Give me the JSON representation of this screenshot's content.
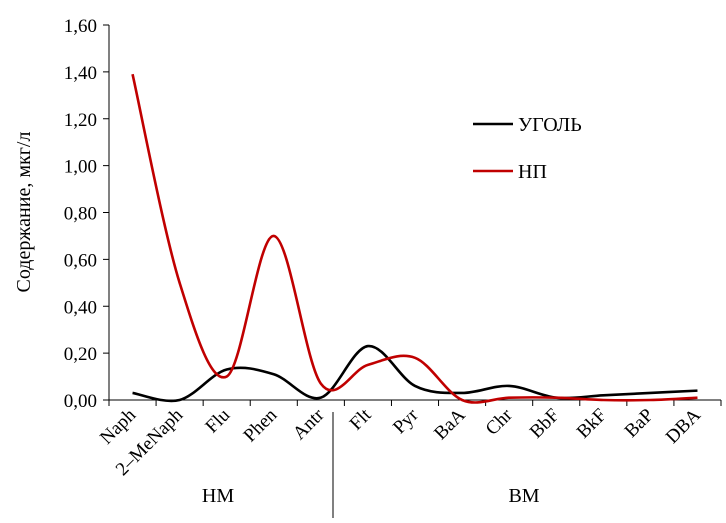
{
  "chart_data": {
    "type": "line",
    "title": "",
    "xlabel": "",
    "ylabel": "Содержание, мкг/л",
    "ylim": [
      0,
      1.6
    ],
    "yticks": [
      "0,00",
      "0,20",
      "0,40",
      "0,60",
      "0,80",
      "1,00",
      "1,20",
      "1,40",
      "1,60"
    ],
    "categories": [
      "Naph",
      "2–MeNaph",
      "Flu",
      "Phen",
      "Antr",
      "Flt",
      "Pyr",
      "BaA",
      "Chr",
      "BbF",
      "BkF",
      "BaP",
      "DBA"
    ],
    "groups": [
      {
        "label": "НМ",
        "from": 0,
        "to": 4
      },
      {
        "label": "ВМ",
        "from": 5,
        "to": 12
      }
    ],
    "grid": false,
    "legend_position": "right",
    "series": [
      {
        "name": "УГОЛЬ",
        "color": "#000000",
        "values": [
          0.03,
          0.0,
          0.13,
          0.11,
          0.01,
          0.23,
          0.06,
          0.03,
          0.06,
          0.01,
          0.02,
          0.03,
          0.04
        ]
      },
      {
        "name": "НП",
        "color": "#c00000",
        "values": [
          1.39,
          0.5,
          0.1,
          0.7,
          0.07,
          0.15,
          0.18,
          0.0,
          0.01,
          0.01,
          0.0,
          0.0,
          0.01
        ]
      }
    ]
  }
}
